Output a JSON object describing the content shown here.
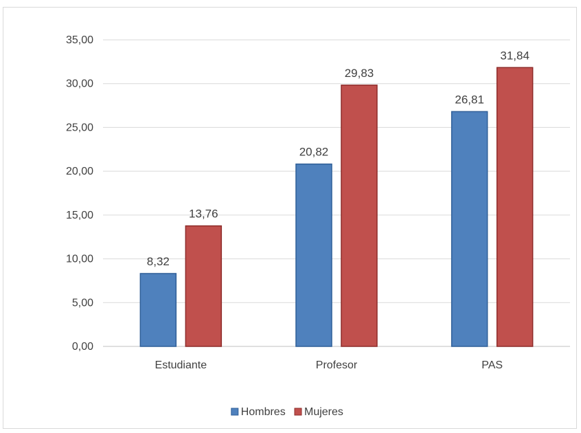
{
  "chart_data": {
    "type": "bar",
    "categories": [
      "Estudiante",
      "Profesor",
      "PAS"
    ],
    "series": [
      {
        "name": "Hombres",
        "values": [
          8.32,
          20.82,
          26.81
        ],
        "color": "#4f81bd",
        "stroke": "#2f5f98",
        "labels": [
          "8,32",
          "20,82",
          "26,81"
        ]
      },
      {
        "name": "Mujeres",
        "values": [
          13.76,
          29.83,
          31.84
        ],
        "color": "#c0504d",
        "stroke": "#8e2c2a",
        "labels": [
          "13,76",
          "29,83",
          "31,84"
        ]
      }
    ],
    "ylim": [
      0,
      35
    ],
    "yticks": [
      0,
      5,
      10,
      15,
      20,
      25,
      30,
      35
    ],
    "ytick_labels": [
      "0,00",
      "5,00",
      "10,00",
      "15,00",
      "20,00",
      "25,00",
      "30,00",
      "35,00"
    ],
    "grid": true,
    "legend_position": "bottom",
    "title": "",
    "xlabel": "",
    "ylabel": ""
  }
}
